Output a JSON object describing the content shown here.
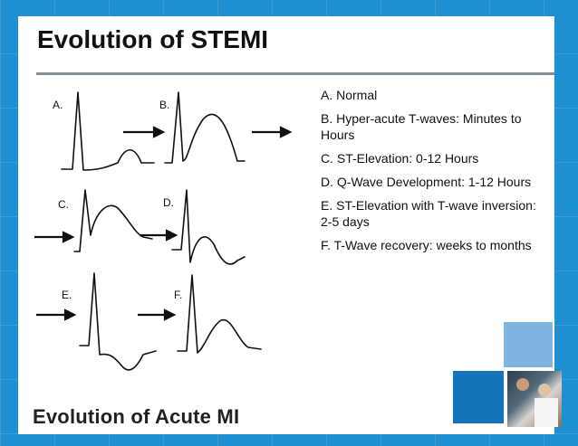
{
  "slide": {
    "title": "Evolution of STEMI",
    "figure_caption": "Evolution of Acute MI",
    "panel_labels": [
      "A.",
      "B.",
      "C.",
      "D.",
      "E.",
      "F."
    ],
    "stages": [
      "A.  Normal",
      "B.  Hyper-acute T-waves: Minutes to Hours",
      "C.  ST-Elevation: 0-12 Hours",
      "D.  Q-Wave Development: 1-12 Hours",
      "E.  ST-Elevation with T-wave inversion: 2-5 days",
      "F.  T-Wave recovery: weeks to months"
    ]
  },
  "colors": {
    "background": "#1e8fd0",
    "accent_tile_dark": "#1573b8",
    "accent_tile_light": "#7fb4e0",
    "rule": "#8a8f95"
  }
}
